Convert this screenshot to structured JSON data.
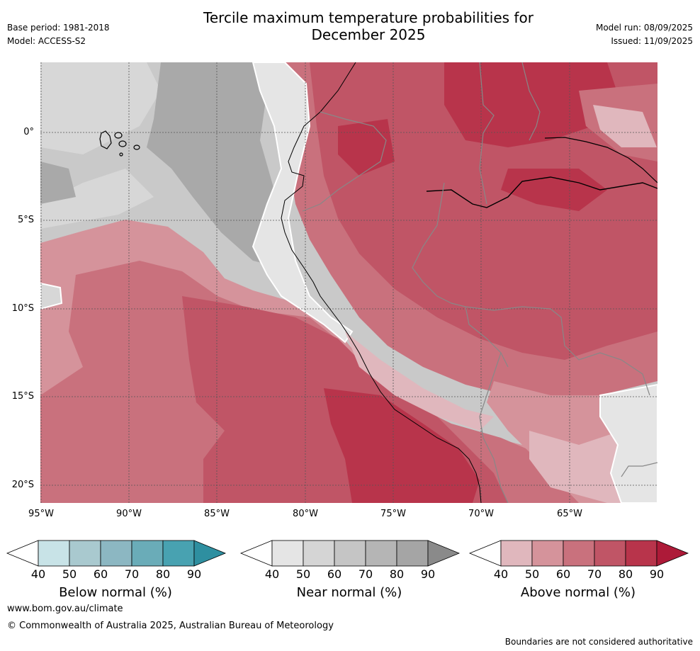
{
  "header": {
    "base_period": "Base period: 1981-2018",
    "model": "Model: ACCESS-S2",
    "title_line1": "Tercile maximum temperature probabilities for",
    "title_line2": "December 2025",
    "model_run": "Model run: 08/09/2025",
    "issued": "Issued: 11/09/2025"
  },
  "map": {
    "lat_labels": [
      "0°",
      "5°S",
      "10°S",
      "15°S",
      "20°S"
    ],
    "lon_labels": [
      "95°W",
      "90°W",
      "85°W",
      "80°W",
      "75°W",
      "70°W",
      "65°W"
    ],
    "extent": {
      "lon_min": -95,
      "lon_max": -60,
      "lat_min": -21,
      "lat_max": 4
    }
  },
  "legends": [
    {
      "label": "Below normal (%)",
      "ticks": [
        "40",
        "50",
        "60",
        "70",
        "80",
        "90"
      ],
      "colors": [
        "#ffffff",
        "#c8e3e7",
        "#a9c9cf",
        "#8cb7c2",
        "#6aacb8",
        "#48a2b1",
        "#2e8fa0"
      ]
    },
    {
      "label": "Near normal (%)",
      "ticks": [
        "40",
        "50",
        "60",
        "70",
        "80",
        "90"
      ],
      "colors": [
        "#ffffff",
        "#e5e5e5",
        "#d5d5d5",
        "#c5c5c5",
        "#b5b5b5",
        "#a5a5a5",
        "#8a8a8a"
      ]
    },
    {
      "label": "Above normal (%)",
      "ticks": [
        "40",
        "50",
        "60",
        "70",
        "80",
        "90"
      ],
      "colors": [
        "#ffffff",
        "#e0b7bd",
        "#d5939b",
        "#c9717d",
        "#c05566",
        "#b8344b",
        "#ad1a38"
      ]
    }
  ],
  "footer": {
    "website": "www.bom.gov.au/climate",
    "copyright": "© Commonwealth of Australia 2025, Australian Bureau of Meteorology",
    "disclaimer": "Boundaries are not considered authoritative"
  }
}
